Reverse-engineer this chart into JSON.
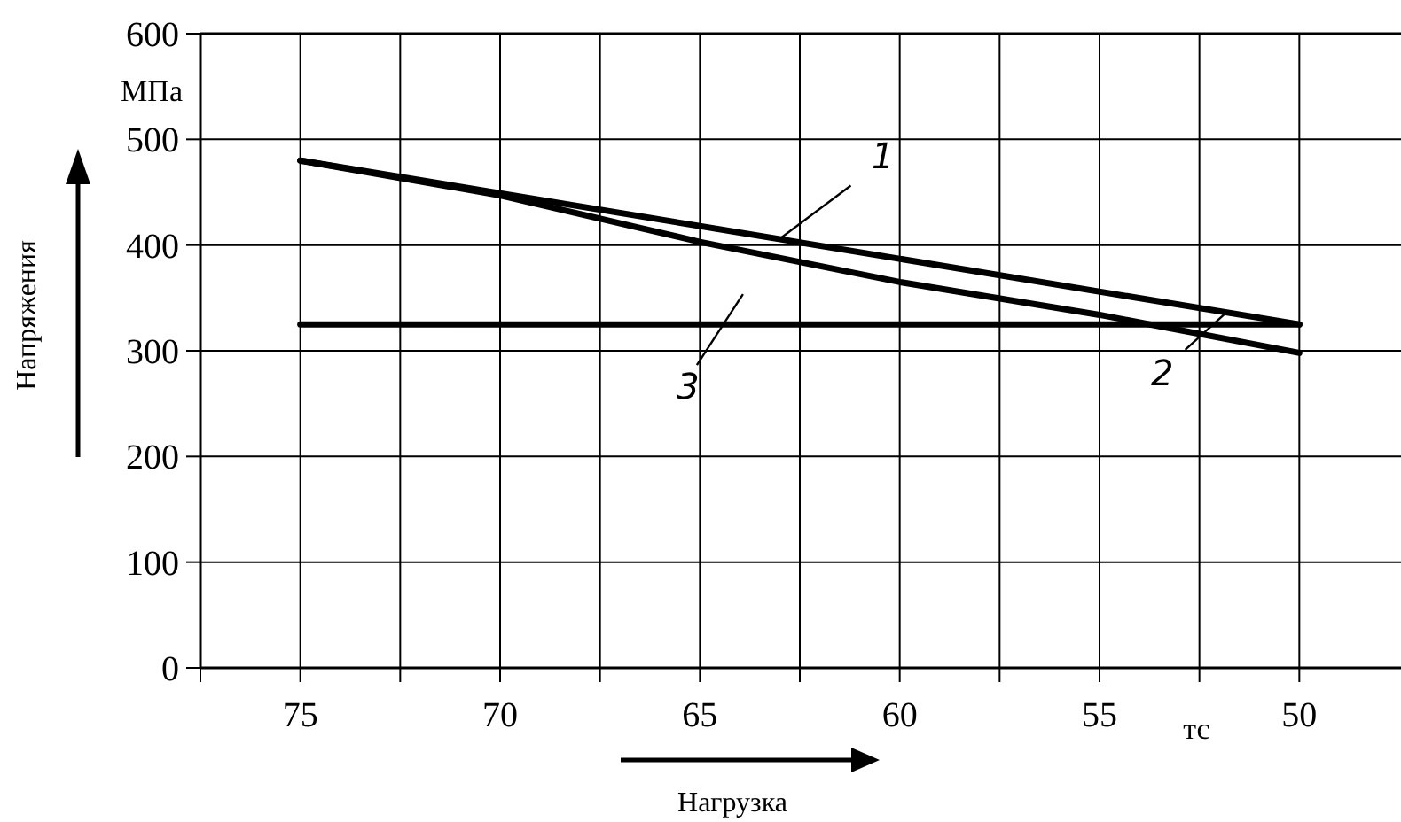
{
  "chart_data": {
    "type": "line",
    "xlabel": "Нагрузка",
    "ylabel": "Напряжения",
    "xlim": [
      77.5,
      47.5
    ],
    "xticks": [
      {
        "value": 77.5,
        "label": null
      },
      75,
      {
        "value": 72.5,
        "label": null
      },
      70,
      {
        "value": 67.5,
        "label": null
      },
      65,
      {
        "value": 62.5,
        "label": null
      },
      60,
      {
        "value": 57.5,
        "label": null
      },
      55,
      {
        "value": 52.5,
        "label": null
      },
      50
    ],
    "ylim": [
      0,
      600
    ],
    "yticks": [
      0,
      100,
      200,
      300,
      400,
      500,
      600
    ],
    "grid": true,
    "marker": "none",
    "line_style": "solid",
    "series": [
      {
        "color": "#000000",
        "x": [
          75,
          50
        ],
        "values": [
          480,
          325
        ]
      },
      {
        "color": "#000000",
        "x": [
          75,
          70,
          65,
          60,
          55,
          50
        ],
        "values": [
          480,
          447,
          403,
          365,
          334,
          298
        ]
      },
      {
        "color": "#000000",
        "x": [
          75,
          50
        ],
        "values": [
          325,
          325
        ]
      }
    ],
    "annotations": [
      {
        "text": "1",
        "x": 63,
        "y": 406
      },
      {
        "text": "2",
        "x": 52.5,
        "y": 316
      },
      {
        "text": "3",
        "x": 64.5,
        "y": 325
      },
      "МПа",
      "тс"
    ]
  }
}
